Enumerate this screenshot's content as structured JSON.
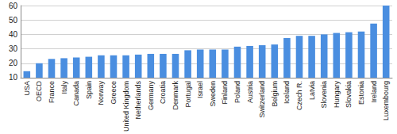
{
  "chart_data": {
    "type": "bar",
    "categories": [
      "USA",
      "OECD",
      "France",
      "Italy",
      "Canada",
      "Spain",
      "Norway",
      "Greece",
      "United Kingdom",
      "Netherlands",
      "Germany",
      "Croatia",
      "Denmark",
      "Portugal",
      "Israel",
      "Sweden",
      "Finland",
      "Poland",
      "Austria",
      "Switzerland",
      "Belgium",
      "Iceland",
      "Czech R.",
      "Latvia",
      "Slovenia",
      "Hungary",
      "Slovakia",
      "Estonia",
      "Ireland",
      "Luxembourg"
    ],
    "values": [
      14.5,
      20,
      23,
      23.5,
      24,
      24.5,
      25.5,
      25.5,
      25.5,
      26,
      26.5,
      26.5,
      26.5,
      29,
      29.5,
      29.5,
      29.5,
      31.5,
      32,
      32.5,
      33,
      37.5,
      39,
      39,
      40,
      41,
      41.5,
      42,
      47.5,
      60
    ],
    "color": "#4a8ee0",
    "ylim": [
      10,
      60
    ],
    "yticks": [
      10,
      20,
      30,
      40,
      50,
      60
    ],
    "grid": true
  }
}
